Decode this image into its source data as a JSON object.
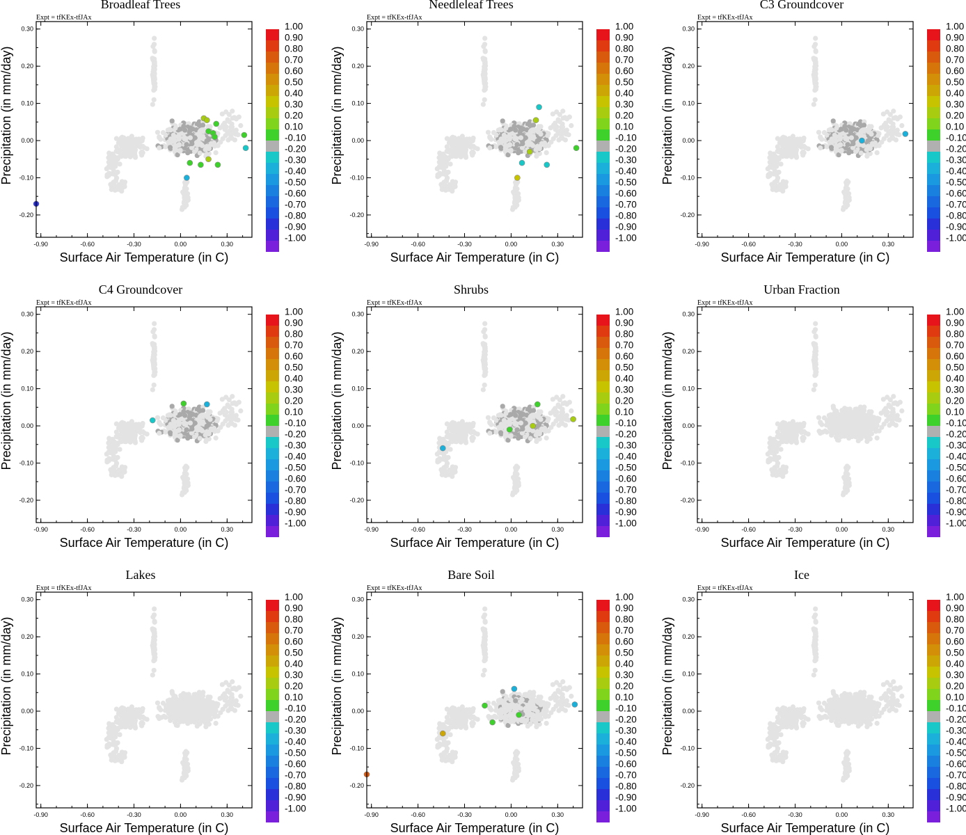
{
  "figure": {
    "expt_label": "Expt = tfKEx-tfJAx",
    "xlabel": "Surface Air Temperature (in C)",
    "ylabel": "Precipitation (in mm/day)",
    "x_ticks": [
      "-0.90",
      "-0.60",
      "-0.30",
      "0.00",
      "0.30"
    ],
    "y_ticks": [
      "0.30",
      "0.20",
      "0.10",
      "0.00",
      "-0.10",
      "-0.20"
    ],
    "colorbar": {
      "labels": [
        "1.00",
        "0.90",
        "0.80",
        "0.70",
        "0.60",
        "0.50",
        "0.40",
        "0.30",
        "0.20",
        "0.10",
        "-0.10",
        "-0.20",
        "-0.30",
        "-0.40",
        "-0.50",
        "-0.60",
        "-0.70",
        "-0.80",
        "-0.90",
        "-1.00"
      ],
      "colors": [
        "#e8141c",
        "#e03a10",
        "#d95a0c",
        "#d6760a",
        "#d38f08",
        "#cca605",
        "#c8c300",
        "#a8cd10",
        "#80d41c",
        "#3fd12b",
        "#b0b0b0",
        "#18c8c8",
        "#1ab0da",
        "#1a98e0",
        "#1a80e0",
        "#1a68e0",
        "#1a50e0",
        "#2a30d8",
        "#5020d8",
        "#7a20dc"
      ]
    }
  },
  "chart_data": [
    {
      "type": "scatter",
      "title": "Broadleaf Trees",
      "xlabel": "Surface Air Temperature (in C)",
      "ylabel": "Precipitation (in mm/day)",
      "xlim": [
        -0.93,
        0.46
      ],
      "ylim": [
        -0.26,
        0.32
      ],
      "background": "light",
      "significant_points": [
        {
          "x": 0.15,
          "y": 0.06,
          "value": 0.35
        },
        {
          "x": 0.17,
          "y": 0.055,
          "value": 0.3
        },
        {
          "x": 0.18,
          "y": 0.025,
          "value": 0.15
        },
        {
          "x": 0.21,
          "y": 0.02,
          "value": 0.15
        },
        {
          "x": 0.23,
          "y": 0.045,
          "value": 0.15
        },
        {
          "x": 0.22,
          "y": 0.01,
          "value": 0.15
        },
        {
          "x": 0.41,
          "y": 0.015,
          "value": 0.15
        },
        {
          "x": 0.06,
          "y": -0.06,
          "value": 0.15
        },
        {
          "x": 0.13,
          "y": -0.065,
          "value": 0.15
        },
        {
          "x": 0.18,
          "y": -0.05,
          "value": 0.3
        },
        {
          "x": 0.24,
          "y": -0.065,
          "value": 0.15
        },
        {
          "x": 0.42,
          "y": -0.02,
          "value": -0.25
        },
        {
          "x": 0.04,
          "y": -0.1,
          "value": -0.35
        },
        {
          "x": -0.93,
          "y": -0.17,
          "value": -0.85
        }
      ]
    },
    {
      "type": "scatter",
      "title": "Needleleaf Trees",
      "xlabel": "Surface Air Temperature (in C)",
      "ylabel": "Precipitation (in mm/day)",
      "xlim": [
        -0.93,
        0.46
      ],
      "ylim": [
        -0.26,
        0.32
      ],
      "background": "light",
      "significant_points": [
        {
          "x": 0.16,
          "y": 0.055,
          "value": 0.3
        },
        {
          "x": 0.12,
          "y": -0.03,
          "value": 0.35
        },
        {
          "x": 0.42,
          "y": -0.02,
          "value": 0.15
        },
        {
          "x": 0.04,
          "y": -0.1,
          "value": 0.4
        },
        {
          "x": 0.07,
          "y": -0.06,
          "value": -0.25
        },
        {
          "x": 0.23,
          "y": -0.065,
          "value": -0.25
        },
        {
          "x": 0.18,
          "y": 0.09,
          "value": -0.25
        }
      ]
    },
    {
      "type": "scatter",
      "title": "C3 Groundcover",
      "xlabel": "Surface Air Temperature (in C)",
      "ylabel": "Precipitation (in mm/day)",
      "xlim": [
        -0.93,
        0.46
      ],
      "ylim": [
        -0.26,
        0.32
      ],
      "background": "light",
      "significant_points": [
        {
          "x": 0.13,
          "y": 0.0,
          "value": -0.3
        },
        {
          "x": 0.41,
          "y": 0.018,
          "value": -0.3
        }
      ]
    },
    {
      "type": "scatter",
      "title": "C4 Groundcover",
      "xlabel": "Surface Air Temperature (in C)",
      "ylabel": "Precipitation (in mm/day)",
      "xlim": [
        -0.93,
        0.46
      ],
      "ylim": [
        -0.26,
        0.32
      ],
      "background": "light",
      "significant_points": [
        {
          "x": 0.02,
          "y": 0.06,
          "value": 0.15
        },
        {
          "x": 0.17,
          "y": 0.058,
          "value": -0.3
        },
        {
          "x": -0.18,
          "y": 0.015,
          "value": -0.25
        }
      ]
    },
    {
      "type": "scatter",
      "title": "Shrubs",
      "xlabel": "Surface Air Temperature (in C)",
      "ylabel": "Precipitation (in mm/day)",
      "xlim": [
        -0.93,
        0.46
      ],
      "ylim": [
        -0.26,
        0.32
      ],
      "background": "light",
      "significant_points": [
        {
          "x": 0.17,
          "y": 0.058,
          "value": 0.15
        },
        {
          "x": 0.4,
          "y": 0.018,
          "value": 0.25
        },
        {
          "x": 0.14,
          "y": 0.0,
          "value": 0.25
        },
        {
          "x": -0.01,
          "y": -0.01,
          "value": 0.15
        },
        {
          "x": -0.44,
          "y": -0.06,
          "value": -0.3
        }
      ]
    },
    {
      "type": "scatter",
      "title": "Urban Fraction",
      "xlabel": "Surface Air Temperature (in C)",
      "ylabel": "Precipitation (in mm/day)",
      "xlim": [
        -0.93,
        0.46
      ],
      "ylim": [
        -0.26,
        0.32
      ],
      "background": "none",
      "significant_points": []
    },
    {
      "type": "scatter",
      "title": "Lakes",
      "xlabel": "Surface Air Temperature (in C)",
      "ylabel": "Precipitation (in mm/day)",
      "xlim": [
        -0.93,
        0.46
      ],
      "ylim": [
        -0.26,
        0.32
      ],
      "background": "none",
      "significant_points": []
    },
    {
      "type": "scatter",
      "title": "Bare Soil",
      "xlabel": "Surface Air Temperature (in C)",
      "ylabel": "Precipitation (in mm/day)",
      "xlim": [
        -0.93,
        0.46
      ],
      "ylim": [
        -0.26,
        0.32
      ],
      "background": "medium",
      "significant_points": [
        {
          "x": 0.02,
          "y": 0.06,
          "value": -0.3
        },
        {
          "x": 0.41,
          "y": 0.018,
          "value": -0.3
        },
        {
          "x": -0.17,
          "y": 0.015,
          "value": 0.15
        },
        {
          "x": 0.05,
          "y": -0.01,
          "value": 0.15
        },
        {
          "x": -0.12,
          "y": -0.03,
          "value": 0.15
        },
        {
          "x": -0.44,
          "y": -0.06,
          "value": 0.45
        },
        {
          "x": -0.93,
          "y": -0.17,
          "value": 0.8
        }
      ]
    },
    {
      "type": "scatter",
      "title": "Ice",
      "xlabel": "Surface Air Temperature (in C)",
      "ylabel": "Precipitation (in mm/day)",
      "xlim": [
        -0.93,
        0.46
      ],
      "ylim": [
        -0.26,
        0.32
      ],
      "background": "none",
      "significant_points": []
    }
  ]
}
